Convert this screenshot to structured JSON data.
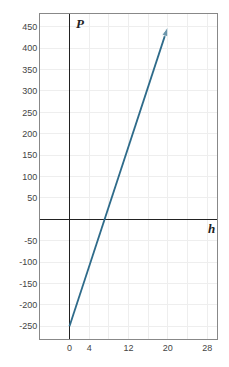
{
  "chart_data": {
    "type": "line",
    "x": [
      0,
      20
    ],
    "values": [
      -250,
      450
    ],
    "color": "#2E6B8A",
    "xlabel": "h",
    "ylabel": "P",
    "xlim": [
      -6,
      30
    ],
    "xticks": [
      0,
      4,
      {
        "value": 8,
        "label": null
      },
      12,
      {
        "value": 16,
        "label": null
      },
      20,
      {
        "value": 24,
        "label": null
      },
      28
    ],
    "ylim": [
      -280,
      480
    ],
    "yticks": [
      -250,
      -200,
      -150,
      -100,
      -50,
      {
        "value": 0,
        "label": null
      },
      50,
      100,
      150,
      200,
      250,
      300,
      350,
      400,
      450
    ],
    "grid": true
  }
}
